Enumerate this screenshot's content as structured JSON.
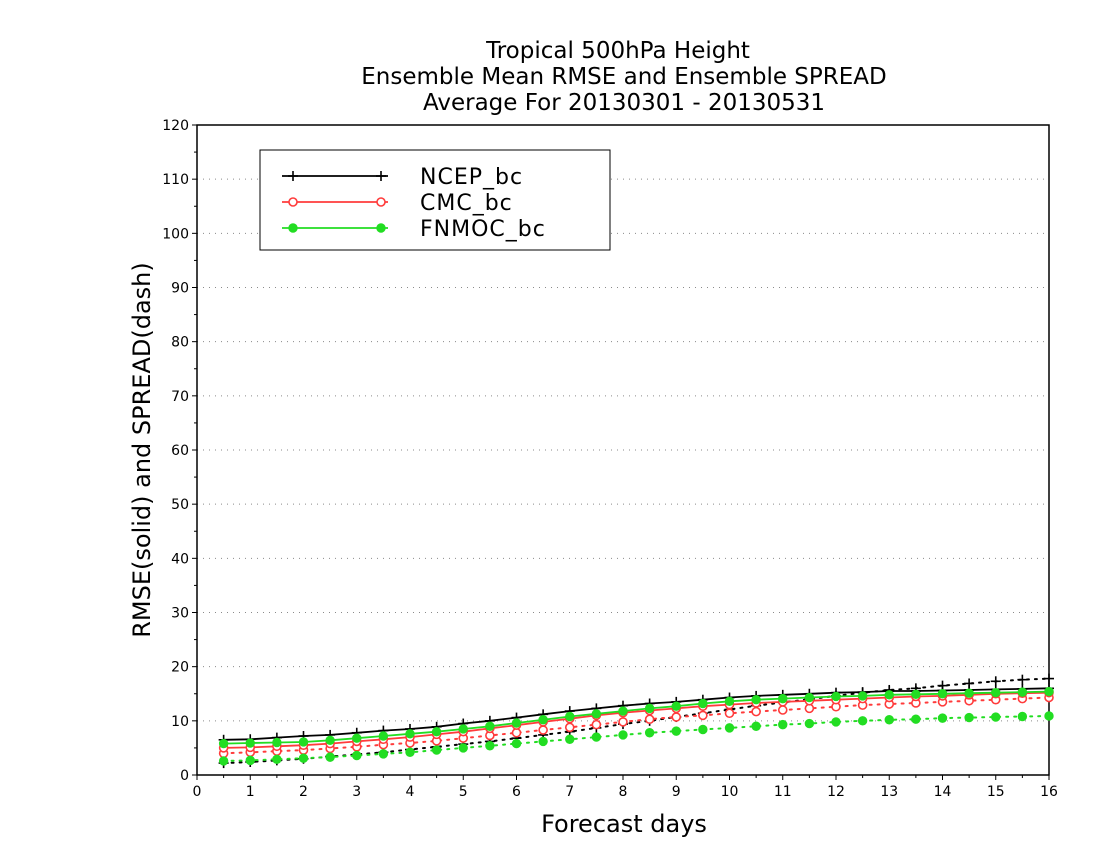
{
  "chart_data": {
    "type": "line",
    "title": [
      "Tropical 500hPa Height",
      "Ensemble Mean RMSE and Ensemble SPREAD",
      "Average For 20130301 - 20130531"
    ],
    "xlabel": "Forecast days",
    "ylabel": "RMSE(solid) and SPREAD(dash)",
    "xlim": [
      0,
      16
    ],
    "ylim": [
      0,
      120
    ],
    "xticks": [
      0,
      1,
      2,
      3,
      4,
      5,
      6,
      7,
      8,
      9,
      10,
      11,
      12,
      13,
      14,
      15,
      16
    ],
    "yticks": [
      0,
      10,
      20,
      30,
      40,
      50,
      60,
      70,
      80,
      90,
      100,
      110,
      120
    ],
    "grid": "horizontal dotted",
    "legend": "top-left",
    "x": [
      0.5,
      1,
      1.5,
      2,
      2.5,
      3,
      3.5,
      4,
      4.5,
      5,
      5.5,
      6,
      6.5,
      7,
      7.5,
      8,
      8.5,
      9,
      9.5,
      10,
      10.5,
      11,
      11.5,
      12,
      12.5,
      13,
      13.5,
      14,
      14.5,
      15,
      15.5,
      16
    ],
    "series": [
      {
        "name": "NCEP_bc",
        "color": "#000000",
        "marker": "plus",
        "rmse": [
          6.5,
          6.6,
          6.9,
          7.2,
          7.4,
          7.8,
          8.2,
          8.5,
          8.9,
          9.5,
          10.0,
          10.6,
          11.2,
          11.8,
          12.3,
          12.8,
          13.2,
          13.5,
          13.9,
          14.3,
          14.6,
          14.8,
          15.0,
          15.2,
          15.3,
          15.5,
          15.5,
          15.6,
          15.7,
          15.8,
          15.9,
          16.0
        ],
        "spread": [
          2.2,
          2.4,
          2.7,
          3.0,
          3.4,
          3.8,
          4.2,
          4.7,
          5.2,
          5.7,
          6.2,
          6.8,
          7.4,
          8.0,
          8.7,
          9.4,
          10.0,
          10.7,
          11.4,
          12.1,
          12.8,
          13.4,
          14.0,
          14.6,
          15.2,
          15.7,
          16.0,
          16.5,
          16.9,
          17.3,
          17.6,
          17.8
        ]
      },
      {
        "name": "CMC_bc",
        "color": "#ff3b3b",
        "marker": "open-circle",
        "rmse": [
          5.0,
          5.1,
          5.3,
          5.5,
          5.8,
          6.2,
          6.6,
          7.0,
          7.5,
          8.0,
          8.6,
          9.2,
          9.8,
          10.4,
          11.0,
          11.5,
          11.9,
          12.3,
          12.7,
          13.0,
          13.3,
          13.5,
          13.7,
          13.9,
          14.1,
          14.3,
          14.5,
          14.6,
          14.8,
          15.0,
          15.1,
          15.2
        ],
        "spread": [
          4.0,
          4.2,
          4.4,
          4.6,
          4.9,
          5.2,
          5.6,
          5.9,
          6.3,
          6.8,
          7.3,
          7.8,
          8.3,
          8.8,
          9.3,
          9.8,
          10.3,
          10.7,
          11.0,
          11.4,
          11.7,
          12.0,
          12.3,
          12.6,
          12.9,
          13.1,
          13.3,
          13.5,
          13.7,
          13.9,
          14.1,
          14.3
        ]
      },
      {
        "name": "FNMOC_bc",
        "color": "#22dd22",
        "marker": "filled-circle",
        "rmse": [
          5.8,
          5.9,
          6.0,
          6.1,
          6.4,
          6.8,
          7.2,
          7.6,
          8.0,
          8.5,
          9.0,
          9.6,
          10.2,
          10.8,
          11.3,
          11.8,
          12.3,
          12.7,
          13.2,
          13.6,
          13.9,
          14.1,
          14.3,
          14.5,
          14.6,
          14.8,
          14.9,
          15.0,
          15.1,
          15.2,
          15.3,
          15.4
        ],
        "spread": [
          2.6,
          2.7,
          2.9,
          3.1,
          3.3,
          3.6,
          3.9,
          4.2,
          4.6,
          5.0,
          5.4,
          5.8,
          6.2,
          6.6,
          7.0,
          7.4,
          7.8,
          8.1,
          8.4,
          8.7,
          9.0,
          9.3,
          9.5,
          9.8,
          10.0,
          10.2,
          10.3,
          10.5,
          10.6,
          10.7,
          10.8,
          10.9
        ]
      }
    ]
  }
}
